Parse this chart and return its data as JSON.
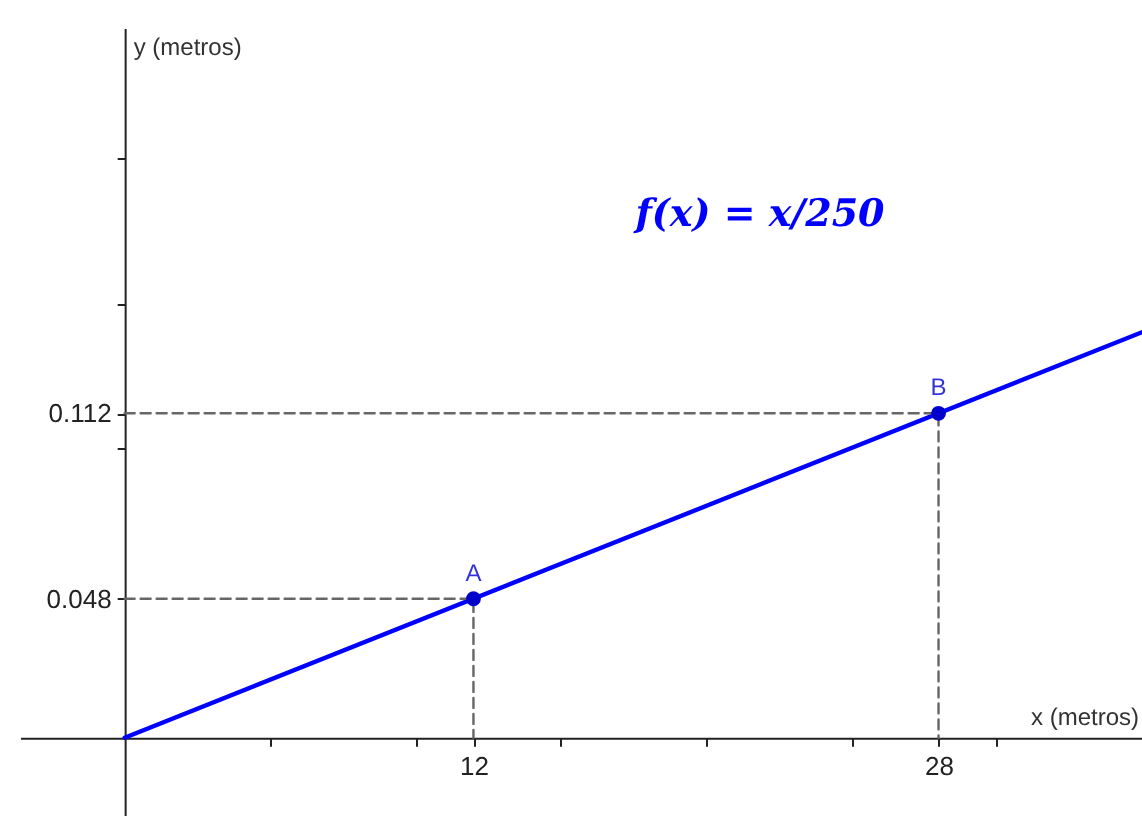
{
  "chart_data": {
    "type": "line",
    "xlabel": "x (metros)",
    "ylabel": "y (metros)",
    "xlim": [
      -3.6,
      35
    ],
    "ylim": [
      -0.027,
      0.245
    ],
    "xticks": [
      {
        "value": 5,
        "label": null
      },
      {
        "value": 10,
        "label": null
      },
      12,
      {
        "value": 15,
        "label": null
      },
      {
        "value": 20,
        "label": null
      },
      {
        "value": 25,
        "label": null
      },
      28,
      {
        "value": 30,
        "label": null
      }
    ],
    "yticks": [
      0.048,
      {
        "value": 0.1,
        "label": null
      },
      0.112,
      {
        "value": 0.15,
        "label": null
      },
      {
        "value": 0.2,
        "label": null
      }
    ],
    "series": [
      {
        "color": "#0000ff",
        "x": [
          0,
          35
        ],
        "values": [
          0,
          0.14
        ],
        "marker": "none",
        "line_style": "solid"
      },
      {
        "color": "#666666",
        "x": [
          0,
          12,
          12
        ],
        "values": [
          0.048,
          0.048,
          0
        ],
        "marker": "none",
        "line_style": "dashed"
      },
      {
        "color": "#666666",
        "x": [
          0,
          28,
          28
        ],
        "values": [
          0.112,
          0.112,
          0
        ],
        "marker": "none",
        "line_style": "dashed"
      },
      {
        "type": "scatter",
        "color": "#0000cc",
        "x": [
          12,
          28
        ],
        "values": [
          0.048,
          0.112
        ],
        "marker": "circle"
      }
    ],
    "annotations": [
      "f(x) = x/250",
      {
        "text": "A",
        "x": 12,
        "y": 0.048
      },
      {
        "text": "B",
        "x": 28,
        "y": 0.112
      }
    ]
  }
}
